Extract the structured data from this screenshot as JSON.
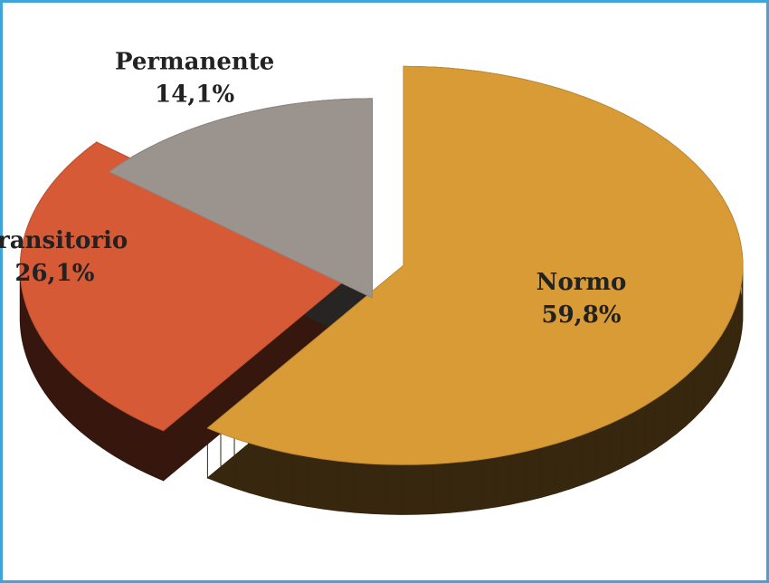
{
  "chart_data": {
    "type": "pie",
    "categories": [
      "Normo",
      "Transitorio",
      "Permanente"
    ],
    "values": [
      59.8,
      26.1,
      14.1
    ],
    "value_labels": [
      "59,8%",
      "26,1%",
      "14,1%"
    ],
    "colors": [
      "#d99b36",
      "#d65a36",
      "#9b948e"
    ]
  }
}
